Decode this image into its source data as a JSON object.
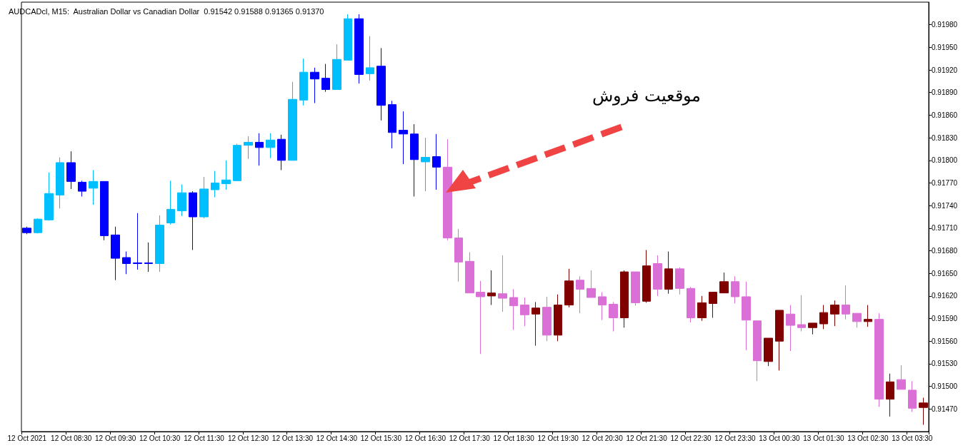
{
  "chart_data": {
    "type": "candlestick",
    "title": "AUDCADcl, M15:  Australian Dollar vs Canadian Dollar  0.91542 0.91588 0.91365 0.91370",
    "annotations": [
      "موقعیت فروش"
    ],
    "categories": [
      "12 Oct 2021",
      null,
      null,
      null,
      "12 Oct 08:30",
      null,
      null,
      null,
      "12 Oct 09:30",
      null,
      null,
      null,
      "12 Oct 10:30",
      null,
      null,
      null,
      "12 Oct 11:30",
      null,
      null,
      null,
      "12 Oct 12:30",
      null,
      null,
      null,
      "12 Oct 13:30",
      null,
      null,
      null,
      "12 Oct 14:30",
      null,
      null,
      null,
      "12 Oct 15:30",
      null,
      null,
      null,
      "12 Oct 16:30",
      null,
      null,
      null,
      "12 Oct 17:30",
      null,
      null,
      null,
      "12 Oct 18:30",
      null,
      null,
      null,
      "12 Oct 19:30",
      null,
      null,
      null,
      "12 Oct 20:30",
      null,
      null,
      null,
      "12 Oct 21:30",
      null,
      null,
      null,
      "12 Oct 22:30",
      null,
      null,
      null,
      "12 Oct 23:30",
      null,
      null,
      null,
      "13 Oct 00:30",
      null,
      null,
      null,
      "13 Oct 01:30",
      null,
      null,
      null,
      "13 Oct 02:30",
      null,
      null,
      null,
      "13 Oct 03:30",
      null
    ],
    "ohlc": [
      [
        0.9171,
        0.91712,
        0.91702,
        0.91704
      ],
      [
        0.91704,
        0.91723,
        0.91703,
        0.91722
      ],
      [
        0.91721,
        0.91784,
        0.9172,
        0.91756
      ],
      [
        0.91754,
        0.91804,
        0.91736,
        0.91797
      ],
      [
        0.91797,
        0.91812,
        0.91762,
        0.91772
      ],
      [
        0.91771,
        0.91773,
        0.91752,
        0.91759
      ],
      [
        0.91763,
        0.91787,
        0.91741,
        0.91772
      ],
      [
        0.91772,
        0.91772,
        0.91694,
        0.917
      ],
      [
        0.91701,
        0.91712,
        0.91641,
        0.9167
      ],
      [
        0.91671,
        0.91679,
        0.91649,
        0.91663
      ],
      [
        0.91664,
        0.9173,
        0.91655,
        0.91663
      ],
      [
        0.91664,
        0.91691,
        0.91652,
        0.91663
      ],
      [
        0.91663,
        0.91727,
        0.91652,
        0.91714
      ],
      [
        0.91717,
        0.91773,
        0.91715,
        0.91735
      ],
      [
        0.91733,
        0.91768,
        0.91726,
        0.91757
      ],
      [
        0.91757,
        0.91759,
        0.91681,
        0.91725
      ],
      [
        0.91725,
        0.91778,
        0.91723,
        0.91762
      ],
      [
        0.91761,
        0.91786,
        0.91751,
        0.9177
      ],
      [
        0.91769,
        0.918,
        0.91761,
        0.91774
      ],
      [
        0.91773,
        0.91822,
        0.91773,
        0.9182
      ],
      [
        0.9182,
        0.91832,
        0.91802,
        0.91824
      ],
      [
        0.91824,
        0.91836,
        0.91793,
        0.91817
      ],
      [
        0.91817,
        0.91836,
        0.91803,
        0.91827
      ],
      [
        0.91828,
        0.91834,
        0.91787,
        0.918
      ],
      [
        0.918,
        0.91904,
        0.918,
        0.91881
      ],
      [
        0.9188,
        0.91935,
        0.91873,
        0.91917
      ],
      [
        0.91917,
        0.91923,
        0.91876,
        0.91908
      ],
      [
        0.91909,
        0.91928,
        0.91891,
        0.91894
      ],
      [
        0.91894,
        0.91954,
        0.91894,
        0.91934
      ],
      [
        0.91933,
        0.91994,
        0.91933,
        0.91988
      ],
      [
        0.91988,
        0.91994,
        0.91902,
        0.91914
      ],
      [
        0.91915,
        0.91965,
        0.91906,
        0.91923
      ],
      [
        0.91925,
        0.91949,
        0.91853,
        0.91873
      ],
      [
        0.91874,
        0.91879,
        0.91816,
        0.91837
      ],
      [
        0.9184,
        0.91865,
        0.91795,
        0.91835
      ],
      [
        0.91835,
        0.91848,
        0.91752,
        0.91801
      ],
      [
        0.91798,
        0.9183,
        0.91759,
        0.91804
      ],
      [
        0.91805,
        0.91835,
        0.91761,
        0.91791
      ],
      [
        0.91791,
        0.91828,
        0.91694,
        0.91697
      ],
      [
        0.91697,
        0.91709,
        0.91639,
        0.91665
      ],
      [
        0.91666,
        0.91678,
        0.91624,
        0.91624
      ],
      [
        0.91625,
        0.9164,
        0.91543,
        0.91619
      ],
      [
        0.9162,
        0.91654,
        0.91608,
        0.91624
      ],
      [
        0.91623,
        0.91674,
        0.91599,
        0.91617
      ],
      [
        0.91618,
        0.91629,
        0.91575,
        0.91607
      ],
      [
        0.91608,
        0.91618,
        0.9158,
        0.91595
      ],
      [
        0.91596,
        0.91612,
        0.91554,
        0.91604
      ],
      [
        0.91605,
        0.91619,
        0.9156,
        0.91568
      ],
      [
        0.91568,
        0.91622,
        0.9156,
        0.91608
      ],
      [
        0.91608,
        0.91656,
        0.91605,
        0.9164
      ],
      [
        0.91641,
        0.91646,
        0.91597,
        0.91629
      ],
      [
        0.9163,
        0.91654,
        0.91618,
        0.91618
      ],
      [
        0.91619,
        0.91625,
        0.91588,
        0.91608
      ],
      [
        0.91609,
        0.91612,
        0.91573,
        0.91591
      ],
      [
        0.91591,
        0.91654,
        0.91578,
        0.91652
      ],
      [
        0.91652,
        0.91652,
        0.91607,
        0.91611
      ],
      [
        0.91613,
        0.91681,
        0.91611,
        0.9166
      ],
      [
        0.91663,
        0.91674,
        0.9162,
        0.91629
      ],
      [
        0.91629,
        0.91679,
        0.91623,
        0.91656
      ],
      [
        0.91656,
        0.91658,
        0.91622,
        0.9163
      ],
      [
        0.9163,
        0.91632,
        0.91585,
        0.91591
      ],
      [
        0.91591,
        0.9162,
        0.91587,
        0.91611
      ],
      [
        0.9161,
        0.91625,
        0.91591,
        0.91625
      ],
      [
        0.91624,
        0.91651,
        0.91624,
        0.91639
      ],
      [
        0.91639,
        0.91646,
        0.9161,
        0.91619
      ],
      [
        0.91619,
        0.91639,
        0.91548,
        0.91588
      ],
      [
        0.91587,
        0.91587,
        0.91507,
        0.91534
      ],
      [
        0.91533,
        0.91564,
        0.91527,
        0.91564
      ],
      [
        0.9156,
        0.91601,
        0.91521,
        0.91601
      ],
      [
        0.91596,
        0.91608,
        0.91547,
        0.91581
      ],
      [
        0.91582,
        0.91621,
        0.91573,
        0.91578
      ],
      [
        0.91578,
        0.91584,
        0.91569,
        0.91584
      ],
      [
        0.91583,
        0.91608,
        0.91576,
        0.91598
      ],
      [
        0.91596,
        0.91614,
        0.9158,
        0.91608
      ],
      [
        0.91608,
        0.91634,
        0.91589,
        0.91596
      ],
      [
        0.91597,
        0.91597,
        0.91578,
        0.91586
      ],
      [
        0.91586,
        0.91608,
        0.91579,
        0.91589
      ],
      [
        0.91589,
        0.91597,
        0.91473,
        0.91483
      ],
      [
        0.91483,
        0.91517,
        0.9146,
        0.91506
      ],
      [
        0.91509,
        0.91528,
        0.91496,
        0.91496
      ],
      [
        0.91495,
        0.91507,
        0.91466,
        0.91471
      ],
      [
        0.91472,
        0.91485,
        0.91449,
        0.91478
      ]
    ],
    "colors": [
      "#0000ff",
      "#00bfff",
      "#00bfff",
      "#00bfff",
      "#0000ff",
      "#0000ff",
      "#00bfff",
      "#0000ff",
      "#0000ff",
      "#0000ff",
      "#0000ff",
      "#0000ff",
      "#00bfff",
      "#00bfff",
      "#00bfff",
      "#0000ff",
      "#00bfff",
      "#00bfff",
      "#00bfff",
      "#00bfff",
      "#00bfff",
      "#0000ff",
      "#00bfff",
      "#0000ff",
      "#00bfff",
      "#00bfff",
      "#0000ff",
      "#0000ff",
      "#00bfff",
      "#00bfff",
      "#0000ff",
      "#00bfff",
      "#0000ff",
      "#0000ff",
      "#0000ff",
      "#0000ff",
      "#00bfff",
      "#0000ff",
      "#da70d6",
      "#da70d6",
      "#da70d6",
      "#da70d6",
      "#800000",
      "#da70d6",
      "#da70d6",
      "#da70d6",
      "#800000",
      "#da70d6",
      "#800000",
      "#800000",
      "#da70d6",
      "#da70d6",
      "#da70d6",
      "#da70d6",
      "#800000",
      "#da70d6",
      "#800000",
      "#da70d6",
      "#800000",
      "#da70d6",
      "#da70d6",
      "#800000",
      "#800000",
      "#800000",
      "#da70d6",
      "#da70d6",
      "#da70d6",
      "#800000",
      "#800000",
      "#da70d6",
      "#da70d6",
      "#800000",
      "#800000",
      "#800000",
      "#da70d6",
      "#da70d6",
      "#800000",
      "#da70d6",
      "#800000",
      "#da70d6",
      "#da70d6",
      "#800000"
    ],
    "ylim": [
      0.9144,
      0.9201
    ],
    "yticks": [
      {
        "value": 0.9147,
        "label": "0.91470"
      },
      {
        "value": 0.915,
        "label": "0.91500"
      },
      {
        "value": 0.9153,
        "label": "0.91530"
      },
      {
        "value": 0.9156,
        "label": "0.91560"
      },
      {
        "value": 0.9159,
        "label": "0.91590"
      },
      {
        "value": 0.9162,
        "label": "0.91620"
      },
      {
        "value": 0.9165,
        "label": "0.91650"
      },
      {
        "value": 0.9168,
        "label": "0.91680"
      },
      {
        "value": 0.9171,
        "label": "0.91710"
      },
      {
        "value": 0.9174,
        "label": "0.91740"
      },
      {
        "value": 0.9177,
        "label": "0.91770"
      },
      {
        "value": 0.918,
        "label": "0.91800"
      },
      {
        "value": 0.9183,
        "label": "0.91830"
      },
      {
        "value": 0.9186,
        "label": "0.91860"
      },
      {
        "value": 0.9189,
        "label": "0.91890"
      },
      {
        "value": 0.9192,
        "label": "0.91920"
      },
      {
        "value": 0.9195,
        "label": "0.91950"
      },
      {
        "value": 0.9198,
        "label": "0.91980"
      }
    ]
  }
}
